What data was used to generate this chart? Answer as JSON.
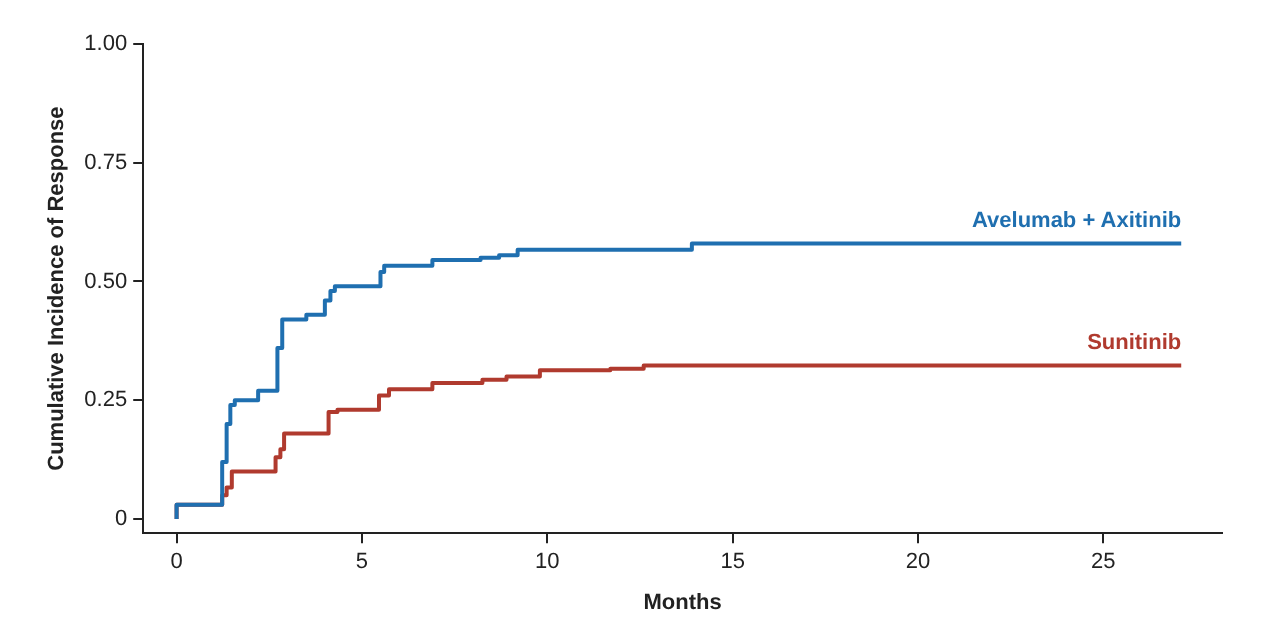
{
  "chart_data": {
    "type": "step",
    "xlabel": "Months",
    "ylabel": "Cumulative Incidence of Response",
    "xlim": [
      -0.9,
      28.2
    ],
    "xticks": [
      0,
      5,
      10,
      15,
      20,
      25
    ],
    "ylim": [
      -0.03,
      1.0
    ],
    "yticks": [
      0,
      {
        "value": 0.25,
        "label": "0.25"
      },
      {
        "value": 0.5,
        "label": "0.50"
      },
      {
        "value": 0.75,
        "label": "0.75"
      },
      {
        "value": 1.0,
        "label": "1.00"
      }
    ],
    "grid": false,
    "legend": false,
    "marker": "none",
    "line_style": "solid",
    "series": [
      {
        "name": "Avelumab + Axitinib",
        "color": "#1f6fb0",
        "x": [
          0,
          1.23,
          1.35,
          1.45,
          1.57,
          2.2,
          2.72,
          2.85,
          2.92,
          3.5,
          4.0,
          4.15,
          4.27,
          5.5,
          5.6,
          6.9,
          8.2,
          8.7,
          9.2,
          13.9,
          20.9,
          27.1
        ],
        "values": [
          0,
          0.03,
          0.12,
          0.2,
          0.24,
          0.25,
          0.27,
          0.36,
          0.42,
          0.42,
          0.43,
          0.46,
          0.48,
          0.49,
          0.52,
          0.533,
          0.545,
          0.55,
          0.555,
          0.567,
          0.58,
          0.58
        ]
      },
      {
        "name": "Sunitinib",
        "color": "#b03a2e",
        "x": [
          0,
          1.23,
          1.35,
          1.49,
          2.67,
          2.8,
          2.9,
          4.1,
          4.34,
          5.46,
          5.73,
          6.9,
          8.25,
          8.9,
          9.8,
          11.7,
          12.6,
          18.1,
          27.1
        ],
        "values": [
          0,
          0.03,
          0.05,
          0.066,
          0.1,
          0.13,
          0.147,
          0.18,
          0.225,
          0.23,
          0.26,
          0.273,
          0.286,
          0.293,
          0.3,
          0.313,
          0.316,
          0.323,
          0.323
        ]
      }
    ]
  }
}
